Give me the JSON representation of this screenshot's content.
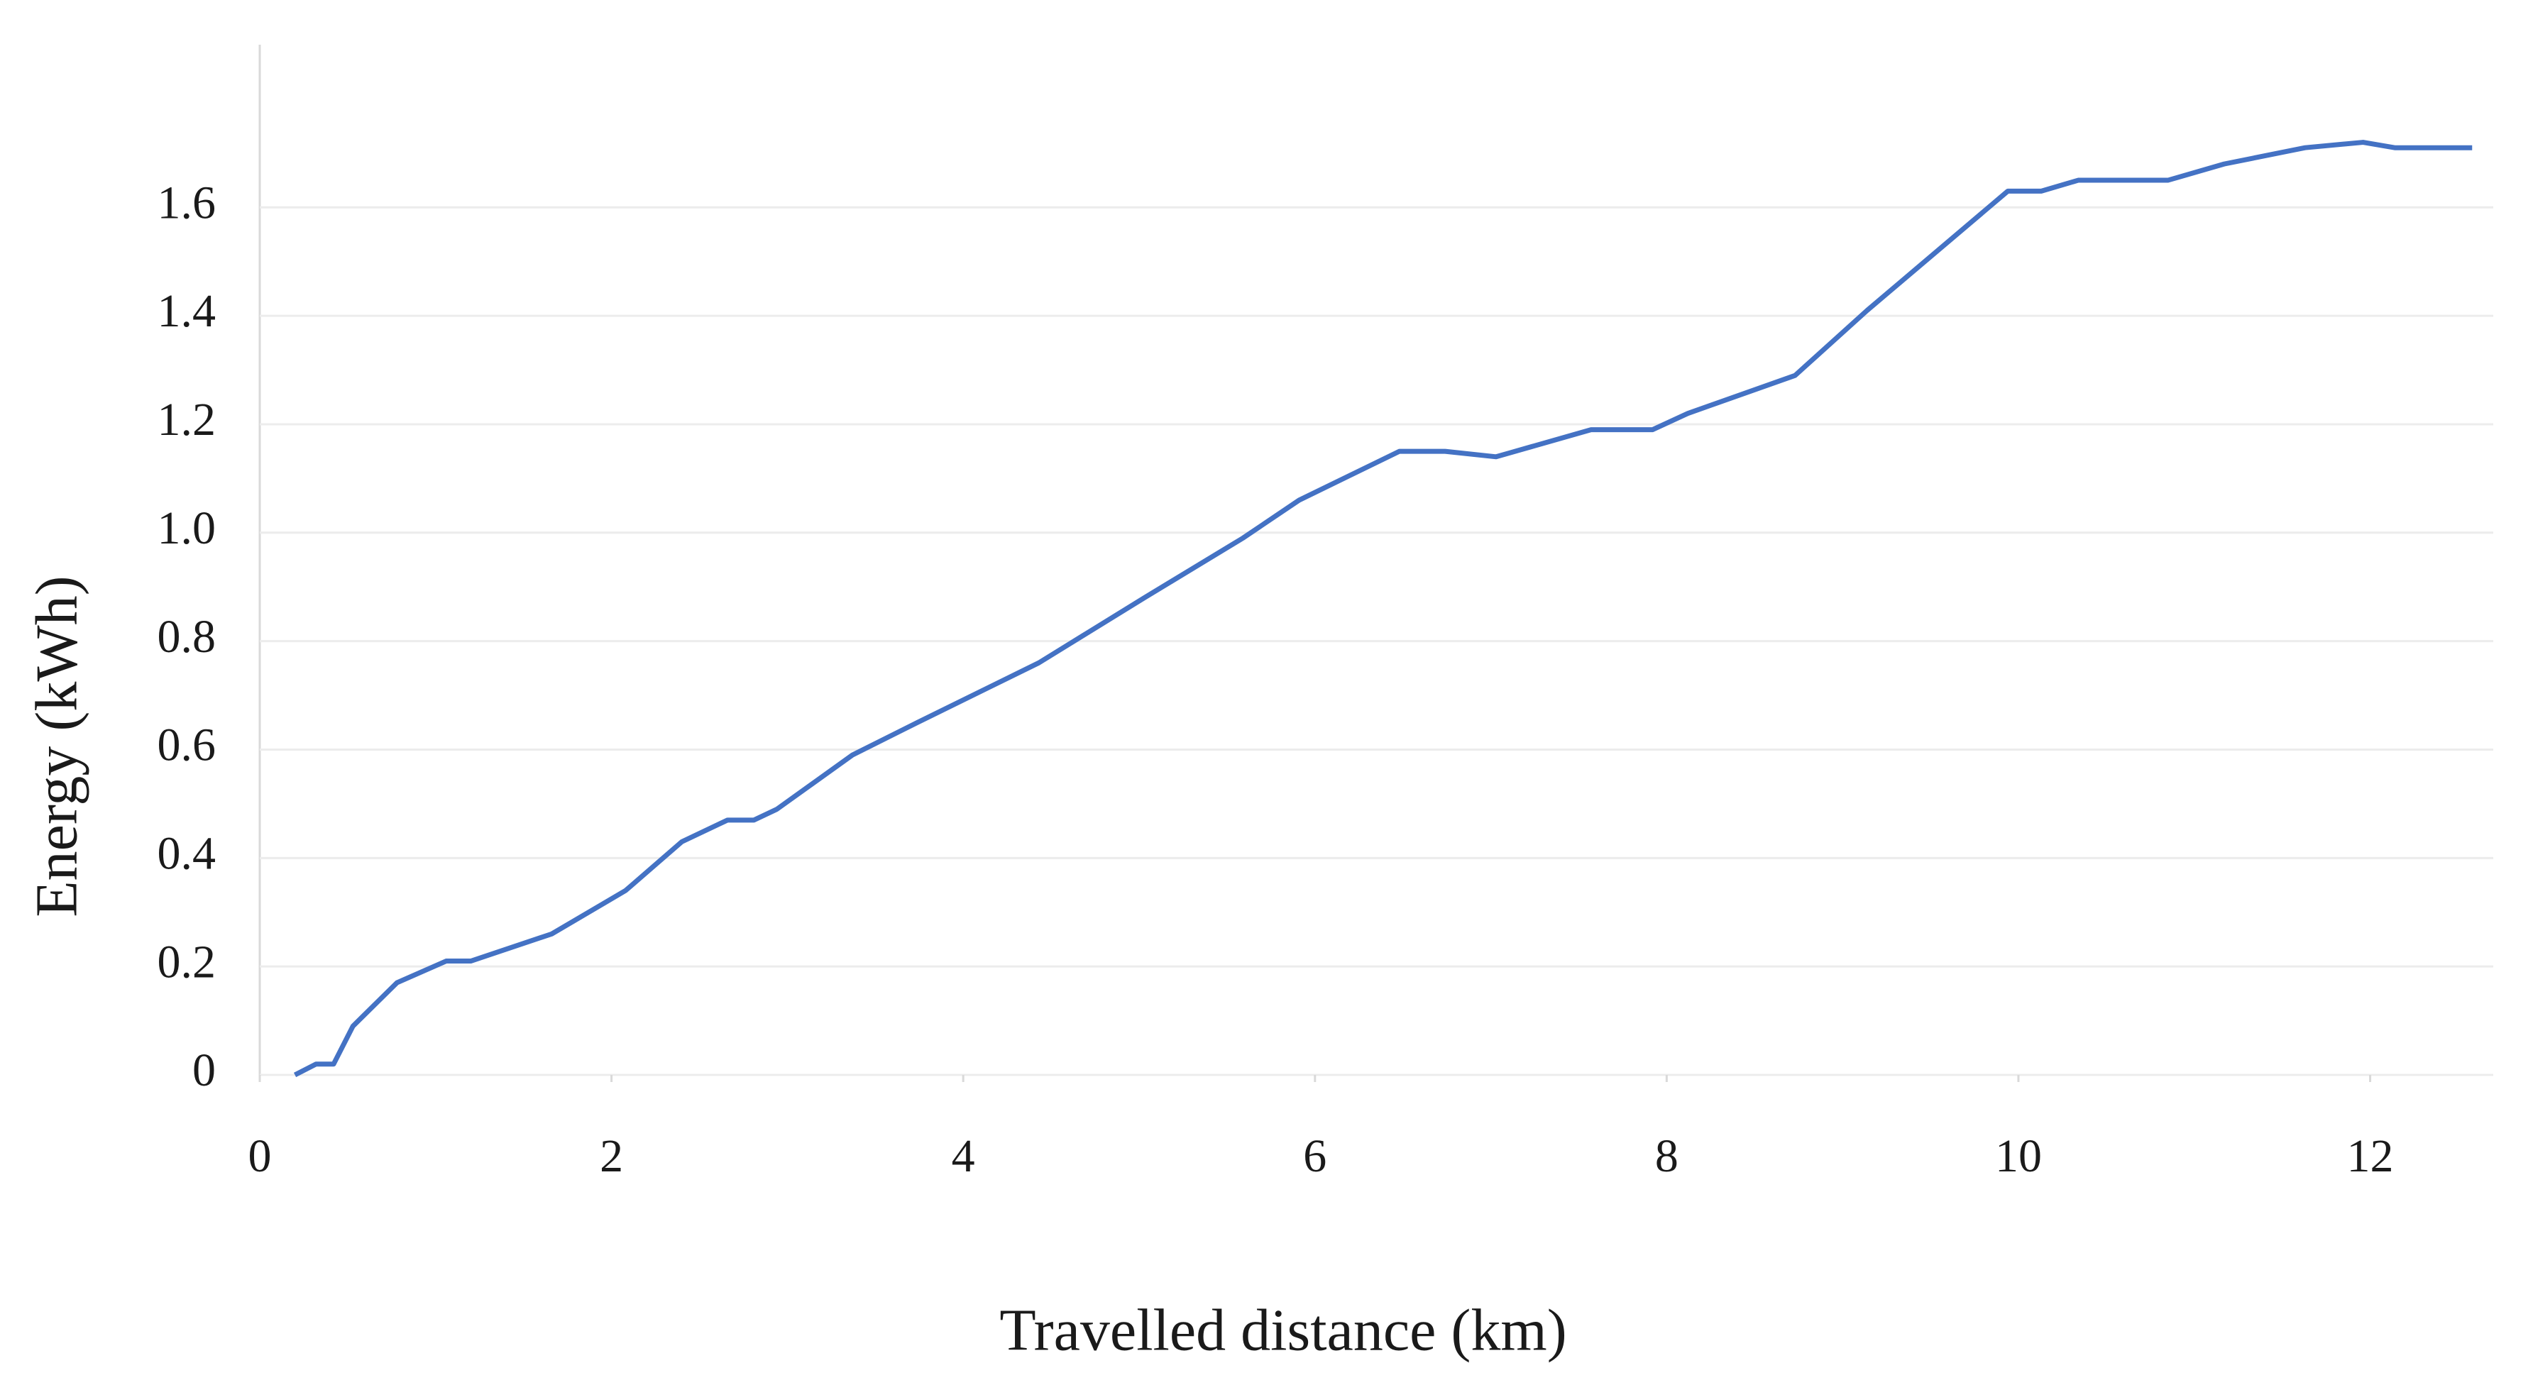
{
  "chart_data": {
    "type": "line",
    "x_label": "Travelled distance (km)",
    "y_label": "Energy (kWh)",
    "xlim": [
      0,
      12.7
    ],
    "xticks": [
      0,
      2,
      4,
      6,
      8,
      10,
      12
    ],
    "ylim": [
      0,
      1.9
    ],
    "yticks": [
      0,
      0.2,
      0.4,
      0.6,
      0.8,
      {
        "value": 1,
        "label": "1.0"
      },
      1.2,
      1.4,
      1.6
    ],
    "grid": true,
    "series": [
      {
        "color": "#4472c4",
        "x": [
          0.2,
          0.32,
          0.42,
          0.53,
          0.78,
          1.06,
          1.2,
          1.66,
          2.08,
          2.4,
          2.66,
          2.81,
          2.94,
          3.37,
          3.74,
          4.43,
          5.03,
          5.59,
          5.91,
          6.48,
          6.74,
          7.03,
          7.57,
          7.92,
          8.12,
          8.73,
          9.14,
          9.94,
          10.13,
          10.34,
          10.85,
          11.17,
          11.63,
          11.96,
          12.14,
          12.58
        ],
        "values": [
          0,
          0.02,
          0.02,
          0.09,
          0.17,
          0.21,
          0.21,
          0.26,
          0.34,
          0.43,
          0.47,
          0.47,
          0.49,
          0.59,
          0.65,
          0.76,
          0.88,
          0.99,
          1.06,
          1.15,
          1.15,
          1.14,
          1.19,
          1.19,
          1.22,
          1.29,
          1.41,
          1.63,
          1.63,
          1.65,
          1.65,
          1.68,
          1.71,
          1.72,
          1.71,
          1.71
        ]
      }
    ]
  }
}
